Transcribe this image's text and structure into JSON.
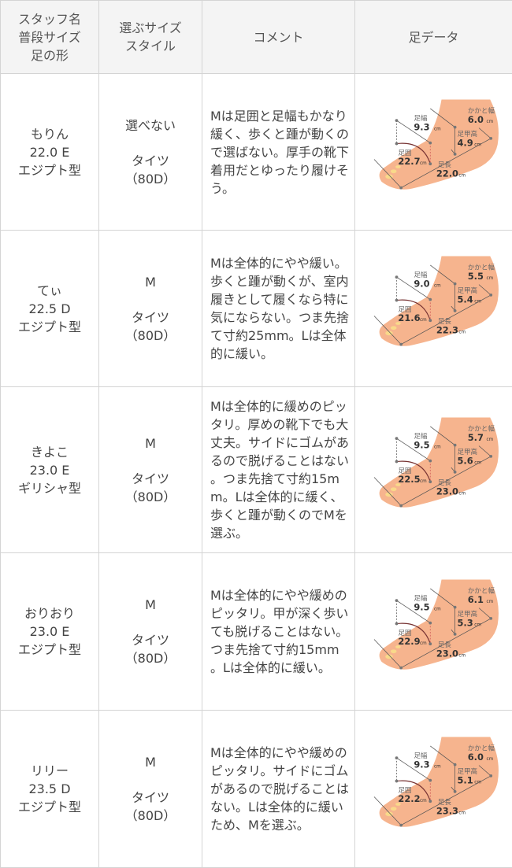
{
  "headers": {
    "staff": [
      "スタッフ名",
      "普段サイズ",
      "足の形"
    ],
    "size": [
      "選ぶサイズ",
      "スタイル"
    ],
    "comment": "コメント",
    "foot": "足データ"
  },
  "foot_labels": {
    "width": "足幅",
    "heel": "かかと幅",
    "instep": "足甲高",
    "girth": "足囲",
    "length": "足長",
    "unit": "cm"
  },
  "colors": {
    "header_bg": "#f4f4f4",
    "border": "#d4d4d4",
    "skin": "#f6b48e"
  },
  "rows": [
    {
      "name": "もりん",
      "size": "22.0 E",
      "shape": "エジプト型",
      "choice": "選べない",
      "style": "タイツ",
      "denier": "（80D）",
      "comment": "Mは足囲と足幅もかなり緩く、歩くと踵が動くので選ばない。厚手の靴下着用だとゆったり履けそう。",
      "foot": {
        "width": "9.3",
        "heel": "6.0",
        "instep": "4.9",
        "girth": "22.7",
        "length": "22.0"
      }
    },
    {
      "name": "てぃ",
      "size": "22.5 D",
      "shape": "エジプト型",
      "choice": "M",
      "style": "タイツ",
      "denier": "（80D）",
      "comment": "Mは全体的にやや緩い。歩くと踵が動くが、室内履きとして履くなら特に気にならない。つま先捨て寸約25mm。Lは全体的に緩い。",
      "foot": {
        "width": "9.0",
        "heel": "5.5",
        "instep": "5.4",
        "girth": "21.6",
        "length": "22.3"
      }
    },
    {
      "name": "きよこ",
      "size": "23.0 E",
      "shape": "ギリシャ型",
      "choice": "M",
      "style": "タイツ",
      "denier": "（80D）",
      "comment": "Mは全体的に緩めのピッタリ。厚めの靴下でも大丈夫。サイドにゴムがあるので脱げることはない。つま先捨て寸約15mm。Lは全体的に緩く、歩くと踵が動くのでMを選ぶ。",
      "foot": {
        "width": "9.5",
        "heel": "5.7",
        "instep": "5.6",
        "girth": "22.5",
        "length": "23.0"
      }
    },
    {
      "name": "おりおり",
      "size": "23.0 E",
      "shape": "エジプト型",
      "choice": "M",
      "style": "タイツ",
      "denier": "（80D）",
      "comment": "Mは全体的にやや緩めのピッタリ。甲が深く歩いても脱げることはない。つま先捨て寸約15mm。Lは全体的に緩い。",
      "foot": {
        "width": "9.5",
        "heel": "6.1",
        "instep": "5.3",
        "girth": "22.9",
        "length": "23.0"
      }
    },
    {
      "name": "リリー",
      "size": "23.5 D",
      "shape": "エジプト型",
      "choice": "M",
      "style": "タイツ",
      "denier": "（80D）",
      "comment": "Mは全体的にやや緩めのピッタリ。サイドにゴムがあるので脱げることはない。Lは全体的に緩いため、Mを選ぶ。",
      "foot": {
        "width": "9.3",
        "heel": "6.0",
        "instep": "5.1",
        "girth": "22.2",
        "length": "23.3"
      }
    }
  ]
}
